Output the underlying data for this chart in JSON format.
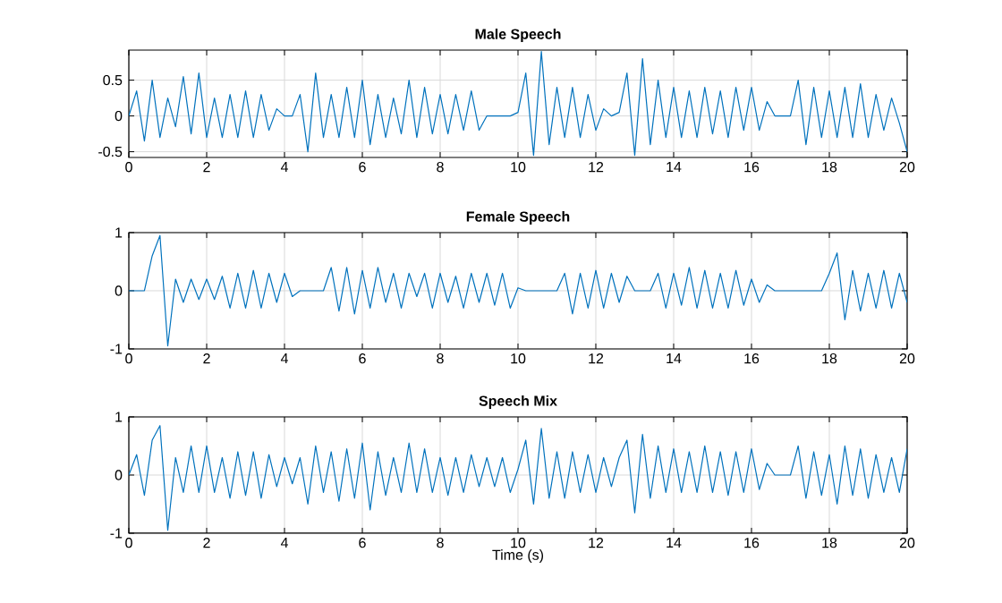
{
  "chart_data": [
    {
      "type": "line",
      "title": "Male Speech",
      "color": "#0072bd",
      "xlim": [
        0,
        20
      ],
      "xticks": [
        0,
        2,
        4,
        6,
        8,
        10,
        12,
        14,
        16,
        18,
        20
      ],
      "ylim": [
        -0.58,
        0.92
      ],
      "yticks": [
        -0.5,
        0,
        0.5
      ],
      "grid": true,
      "x": [
        0,
        0.2,
        0.4,
        0.6,
        0.8,
        1,
        1.2,
        1.4,
        1.6,
        1.8,
        2,
        2.2,
        2.4,
        2.6,
        2.8,
        3,
        3.2,
        3.4,
        3.6,
        3.8,
        4,
        4.2,
        4.4,
        4.6,
        4.8,
        5,
        5.2,
        5.4,
        5.6,
        5.8,
        6,
        6.2,
        6.4,
        6.6,
        6.8,
        7,
        7.2,
        7.4,
        7.6,
        7.8,
        8,
        8.2,
        8.4,
        8.6,
        8.8,
        9,
        9.2,
        9.4,
        9.6,
        9.8,
        10,
        10.2,
        10.4,
        10.6,
        10.8,
        11,
        11.2,
        11.4,
        11.6,
        11.8,
        12,
        12.2,
        12.4,
        12.6,
        12.8,
        13,
        13.2,
        13.4,
        13.6,
        13.8,
        14,
        14.2,
        14.4,
        14.6,
        14.8,
        15,
        15.2,
        15.4,
        15.6,
        15.8,
        16,
        16.2,
        16.4,
        16.6,
        16.8,
        17,
        17.2,
        17.4,
        17.6,
        17.8,
        18,
        18.2,
        18.4,
        18.6,
        18.8,
        19,
        19.2,
        19.4,
        19.6,
        19.8,
        20
      ],
      "values": [
        0,
        0.35,
        -0.35,
        0.5,
        -0.3,
        0.25,
        -0.15,
        0.55,
        -0.25,
        0.6,
        -0.3,
        0.25,
        -0.3,
        0.3,
        -0.3,
        0.35,
        -0.3,
        0.3,
        -0.2,
        0.1,
        0,
        0,
        0.3,
        -0.5,
        0.6,
        -0.3,
        0.3,
        -0.3,
        0.4,
        -0.3,
        0.5,
        -0.4,
        0.3,
        -0.3,
        0.25,
        -0.25,
        0.5,
        -0.3,
        0.4,
        -0.25,
        0.3,
        -0.25,
        0.3,
        -0.2,
        0.35,
        -0.2,
        0,
        0,
        0,
        0,
        0.05,
        0.6,
        -0.55,
        0.9,
        -0.4,
        0.4,
        -0.3,
        0.4,
        -0.3,
        0.3,
        -0.2,
        0.1,
        0,
        0.05,
        0.6,
        -0.55,
        0.8,
        -0.4,
        0.5,
        -0.3,
        0.4,
        -0.3,
        0.35,
        -0.3,
        0.4,
        -0.25,
        0.35,
        -0.3,
        0.4,
        -0.2,
        0.4,
        -0.2,
        0.2,
        0,
        0,
        0,
        0.5,
        -0.4,
        0.4,
        -0.3,
        0.35,
        -0.3,
        0.4,
        -0.3,
        0.45,
        -0.3,
        0.3,
        -0.2,
        0.25,
        -0.1,
        -0.5
      ]
    },
    {
      "type": "line",
      "title": "Female Speech",
      "color": "#0072bd",
      "xlim": [
        0,
        20
      ],
      "xticks": [
        0,
        2,
        4,
        6,
        8,
        10,
        12,
        14,
        16,
        18,
        20
      ],
      "ylim": [
        -1,
        1
      ],
      "yticks": [
        -1,
        0,
        1
      ],
      "grid": true,
      "x": [
        0,
        0.2,
        0.4,
        0.6,
        0.8,
        1,
        1.2,
        1.4,
        1.6,
        1.8,
        2,
        2.2,
        2.4,
        2.6,
        2.8,
        3,
        3.2,
        3.4,
        3.6,
        3.8,
        4,
        4.2,
        4.4,
        4.6,
        4.8,
        5,
        5.2,
        5.4,
        5.6,
        5.8,
        6,
        6.2,
        6.4,
        6.6,
        6.8,
        7,
        7.2,
        7.4,
        7.6,
        7.8,
        8,
        8.2,
        8.4,
        8.6,
        8.8,
        9,
        9.2,
        9.4,
        9.6,
        9.8,
        10,
        10.2,
        10.4,
        10.6,
        10.8,
        11,
        11.2,
        11.4,
        11.6,
        11.8,
        12,
        12.2,
        12.4,
        12.6,
        12.8,
        13,
        13.2,
        13.4,
        13.6,
        13.8,
        14,
        14.2,
        14.4,
        14.6,
        14.8,
        15,
        15.2,
        15.4,
        15.6,
        15.8,
        16,
        16.2,
        16.4,
        16.6,
        16.8,
        17,
        17.2,
        17.4,
        17.6,
        17.8,
        18,
        18.2,
        18.4,
        18.6,
        18.8,
        19,
        19.2,
        19.4,
        19.6,
        19.8,
        20
      ],
      "values": [
        0,
        0,
        0,
        0.6,
        0.95,
        -0.95,
        0.2,
        -0.2,
        0.2,
        -0.15,
        0.2,
        -0.15,
        0.25,
        -0.3,
        0.3,
        -0.3,
        0.35,
        -0.3,
        0.3,
        -0.2,
        0.3,
        -0.1,
        0,
        0,
        0,
        0,
        0.4,
        -0.35,
        0.4,
        -0.4,
        0.35,
        -0.3,
        0.4,
        -0.2,
        0.3,
        -0.3,
        0.3,
        -0.1,
        0.3,
        -0.3,
        0.3,
        -0.2,
        0.25,
        -0.3,
        0.3,
        -0.2,
        0.3,
        -0.25,
        0.3,
        -0.3,
        0.05,
        0,
        0,
        0,
        0,
        0,
        0.3,
        -0.4,
        0.3,
        -0.3,
        0.35,
        -0.3,
        0.3,
        -0.2,
        0.25,
        0,
        0,
        0,
        0.3,
        -0.3,
        0.3,
        -0.25,
        0.4,
        -0.3,
        0.35,
        -0.3,
        0.3,
        -0.3,
        0.35,
        -0.25,
        0.2,
        -0.2,
        0.1,
        0,
        0,
        0,
        0,
        0,
        0,
        0,
        0.3,
        0.65,
        -0.5,
        0.35,
        -0.35,
        0.3,
        -0.3,
        0.35,
        -0.3,
        0.3,
        -0.2
      ]
    },
    {
      "type": "line",
      "title": "Speech Mix",
      "xlabel": "Time (s)",
      "color": "#0072bd",
      "xlim": [
        0,
        20
      ],
      "xticks": [
        0,
        2,
        4,
        6,
        8,
        10,
        12,
        14,
        16,
        18,
        20
      ],
      "ylim": [
        -1,
        1
      ],
      "yticks": [
        -1,
        0,
        1
      ],
      "grid": true,
      "x": [
        0,
        0.2,
        0.4,
        0.6,
        0.8,
        1,
        1.2,
        1.4,
        1.6,
        1.8,
        2,
        2.2,
        2.4,
        2.6,
        2.8,
        3,
        3.2,
        3.4,
        3.6,
        3.8,
        4,
        4.2,
        4.4,
        4.6,
        4.8,
        5,
        5.2,
        5.4,
        5.6,
        5.8,
        6,
        6.2,
        6.4,
        6.6,
        6.8,
        7,
        7.2,
        7.4,
        7.6,
        7.8,
        8,
        8.2,
        8.4,
        8.6,
        8.8,
        9,
        9.2,
        9.4,
        9.6,
        9.8,
        10,
        10.2,
        10.4,
        10.6,
        10.8,
        11,
        11.2,
        11.4,
        11.6,
        11.8,
        12,
        12.2,
        12.4,
        12.6,
        12.8,
        13,
        13.2,
        13.4,
        13.6,
        13.8,
        14,
        14.2,
        14.4,
        14.6,
        14.8,
        15,
        15.2,
        15.4,
        15.6,
        15.8,
        16,
        16.2,
        16.4,
        16.6,
        16.8,
        17,
        17.2,
        17.4,
        17.6,
        17.8,
        18,
        18.2,
        18.4,
        18.6,
        18.8,
        19,
        19.2,
        19.4,
        19.6,
        19.8,
        20
      ],
      "values": [
        0,
        0.35,
        -0.35,
        0.6,
        0.85,
        -0.95,
        0.3,
        -0.3,
        0.5,
        -0.3,
        0.5,
        -0.3,
        0.3,
        -0.4,
        0.4,
        -0.35,
        0.4,
        -0.4,
        0.35,
        -0.2,
        0.3,
        -0.15,
        0.3,
        -0.5,
        0.5,
        -0.3,
        0.4,
        -0.45,
        0.45,
        -0.4,
        0.55,
        -0.6,
        0.4,
        -0.35,
        0.3,
        -0.3,
        0.55,
        -0.3,
        0.45,
        -0.3,
        0.3,
        -0.35,
        0.3,
        -0.3,
        0.35,
        -0.2,
        0.3,
        -0.2,
        0.3,
        -0.3,
        0.1,
        0.6,
        -0.5,
        0.8,
        -0.4,
        0.4,
        -0.4,
        0.4,
        -0.3,
        0.35,
        -0.3,
        0.3,
        -0.2,
        0.3,
        0.6,
        -0.65,
        0.7,
        -0.4,
        0.5,
        -0.3,
        0.45,
        -0.3,
        0.4,
        -0.3,
        0.5,
        -0.3,
        0.4,
        -0.35,
        0.4,
        -0.3,
        0.45,
        -0.25,
        0.2,
        0,
        0,
        0,
        0.5,
        -0.4,
        0.4,
        -0.35,
        0.35,
        -0.5,
        0.5,
        -0.35,
        0.45,
        -0.4,
        0.35,
        -0.3,
        0.3,
        -0.3,
        0.45
      ]
    }
  ]
}
